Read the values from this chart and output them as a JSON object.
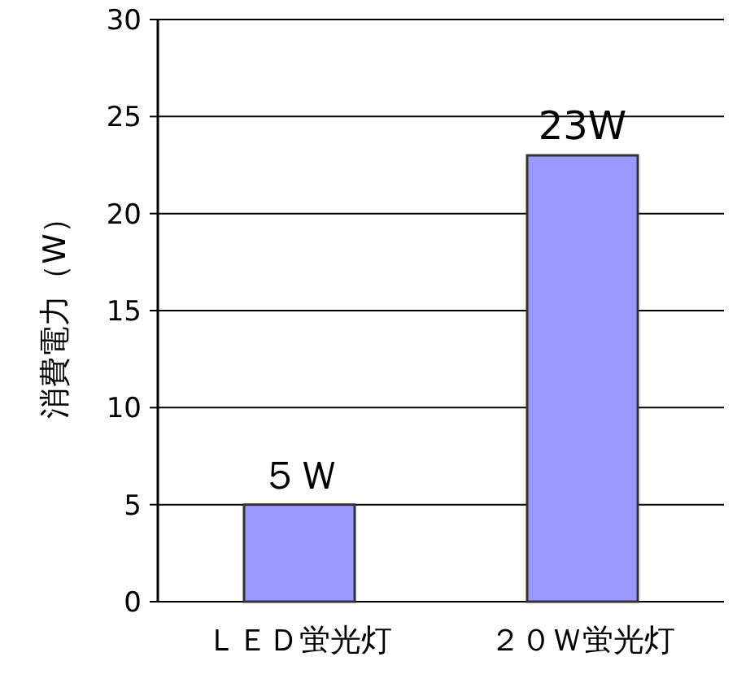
{
  "chart_data": {
    "type": "bar",
    "ylabel": "消費電力（W）",
    "categories": [
      "ＬＥＤ蛍光灯",
      "２０Ｗ蛍光灯"
    ],
    "values": [
      5,
      23
    ],
    "color": "#9999ff",
    "value_labels": [
      "５Ｗ",
      "23W"
    ],
    "ylim": [
      0,
      30
    ],
    "yticks": [
      0,
      5,
      10,
      15,
      20,
      25,
      30
    ],
    "grid": "y"
  }
}
